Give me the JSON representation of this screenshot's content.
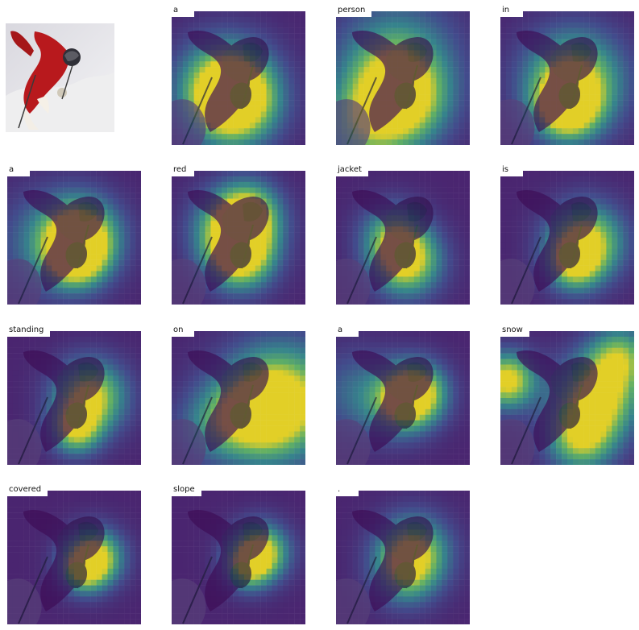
{
  "original_image": {
    "description_icon": "skier-photo-icon"
  },
  "attention_words": [
    {
      "word": "a"
    },
    {
      "word": "person"
    },
    {
      "word": "in"
    },
    {
      "word": "a"
    },
    {
      "word": "red"
    },
    {
      "word": "jacket"
    },
    {
      "word": "is"
    },
    {
      "word": "standing"
    },
    {
      "word": "on"
    },
    {
      "word": "a"
    },
    {
      "word": "snow"
    },
    {
      "word": "covered"
    },
    {
      "word": "slope"
    },
    {
      "word": "."
    }
  ],
  "colors": {
    "heat_low": "#46105f",
    "heat_mid": "#2c8c8c",
    "heat_high": "#f2e318"
  }
}
